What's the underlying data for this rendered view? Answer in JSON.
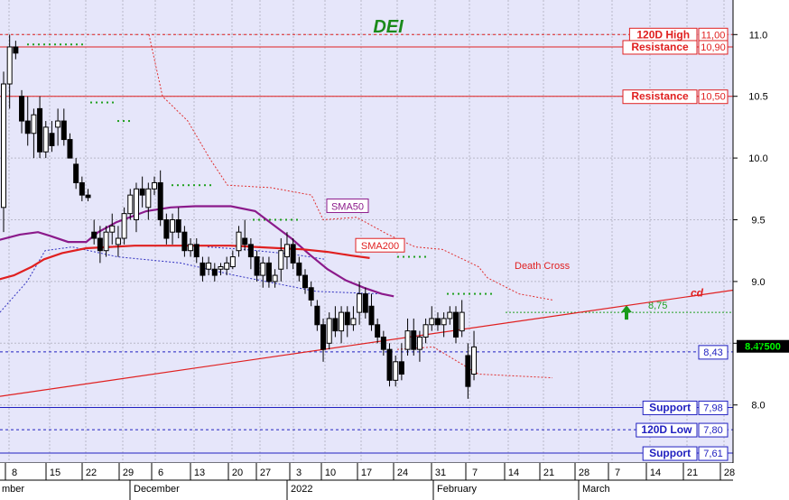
{
  "chart_data": {
    "type": "candlestick",
    "title": "DEI",
    "y_axis": {
      "ylim": [
        7.53,
        11.28
      ],
      "ticks": [
        "8.0",
        "8.5",
        "9.0",
        "9.5",
        "10.0",
        "10.5",
        "11.0"
      ],
      "position": "right"
    },
    "x_axis": {
      "day_ticks": [
        "8",
        "15",
        "22",
        "29",
        "6",
        "13",
        "20",
        "27",
        "3",
        "10",
        "17",
        "24",
        "31",
        "7",
        "14",
        "21",
        "28",
        "7",
        "14",
        "21",
        "28"
      ],
      "month_labels": [
        "mber",
        "December",
        "2022",
        "February",
        "March"
      ]
    },
    "levels": [
      {
        "name": "120D High",
        "label": "11,00",
        "value": 11.0,
        "style": "dashed",
        "color": "#e02020"
      },
      {
        "name": "Resistance",
        "label": "10,90",
        "value": 10.9,
        "style": "solid",
        "color": "#e02020"
      },
      {
        "name": "Resistance",
        "label": "10,50",
        "value": 10.5,
        "style": "solid",
        "color": "#e02020"
      },
      {
        "name": "",
        "label": "8,43",
        "value": 8.43,
        "style": "dashed",
        "color": "#2020c0"
      },
      {
        "name": "Support",
        "label": "7,98",
        "value": 7.98,
        "style": "solid",
        "color": "#2020c0"
      },
      {
        "name": "120D Low",
        "label": "7,80",
        "value": 7.8,
        "style": "dashed",
        "color": "#2020c0"
      },
      {
        "name": "Support",
        "label": "7,61",
        "value": 7.61,
        "style": "solid",
        "color": "#2020c0"
      }
    ],
    "green_level": {
      "label": "8,75",
      "value": 8.75
    },
    "last_price": "8.47500",
    "series": [
      {
        "name": "SMA50",
        "color": "#8b1a8b",
        "points": [
          [
            -1,
            9.33
          ],
          [
            3,
            9.38
          ],
          [
            6,
            9.4
          ],
          [
            8,
            9.37
          ],
          [
            11,
            9.32
          ],
          [
            14,
            9.32
          ],
          [
            16,
            9.4
          ],
          [
            19,
            9.48
          ],
          [
            24,
            9.57
          ],
          [
            28,
            9.6
          ],
          [
            32,
            9.61
          ],
          [
            38,
            9.61
          ],
          [
            42,
            9.57
          ],
          [
            45,
            9.46
          ],
          [
            48,
            9.35
          ],
          [
            51,
            9.22
          ],
          [
            54,
            9.1
          ],
          [
            57,
            9.01
          ],
          [
            60,
            8.95
          ],
          [
            63,
            8.9
          ],
          [
            65,
            8.88
          ]
        ]
      },
      {
        "name": "SMA200",
        "color": "#e02020",
        "points": [
          [
            -1,
            9.01
          ],
          [
            2,
            9.05
          ],
          [
            5,
            9.12
          ],
          [
            7,
            9.18
          ],
          [
            10,
            9.23
          ],
          [
            14,
            9.27
          ],
          [
            18,
            9.28
          ],
          [
            22,
            9.29
          ],
          [
            28,
            9.29
          ],
          [
            34,
            9.29
          ],
          [
            38,
            9.29
          ],
          [
            42,
            9.28
          ],
          [
            46,
            9.27
          ],
          [
            50,
            9.26
          ],
          [
            54,
            9.24
          ],
          [
            58,
            9.21
          ],
          [
            61,
            9.19
          ]
        ]
      }
    ],
    "candles": [
      [
        0,
        9.6,
        10.7,
        9.4,
        10.6
      ],
      [
        1,
        10.6,
        11.0,
        10.4,
        10.9
      ],
      [
        2,
        10.9,
        10.95,
        10.8,
        10.85
      ],
      [
        3,
        10.5,
        10.55,
        10.2,
        10.3
      ],
      [
        4,
        10.3,
        10.5,
        10.1,
        10.2
      ],
      [
        5,
        10.2,
        10.4,
        10.0,
        10.35
      ],
      [
        6,
        10.4,
        10.5,
        10.0,
        10.05
      ],
      [
        7,
        10.05,
        10.3,
        10.0,
        10.25
      ],
      [
        8,
        10.2,
        10.3,
        10.05,
        10.1
      ],
      [
        9,
        10.25,
        10.4,
        10.1,
        10.3
      ],
      [
        10,
        10.3,
        10.4,
        10.1,
        10.15
      ],
      [
        11,
        10.15,
        10.2,
        10.0,
        10.0
      ],
      [
        12,
        9.95,
        10.0,
        9.75,
        9.8
      ],
      [
        13,
        9.8,
        9.85,
        9.65,
        9.7
      ],
      [
        14,
        9.7,
        9.75,
        9.65,
        9.68
      ],
      [
        15,
        9.4,
        9.5,
        9.3,
        9.35
      ],
      [
        16,
        9.35,
        9.45,
        9.15,
        9.25
      ],
      [
        17,
        9.25,
        9.45,
        9.2,
        9.4
      ],
      [
        18,
        9.4,
        9.55,
        9.3,
        9.45
      ],
      [
        19,
        9.3,
        9.45,
        9.2,
        9.35
      ],
      [
        20,
        9.35,
        9.6,
        9.3,
        9.55
      ],
      [
        21,
        9.55,
        9.75,
        9.5,
        9.7
      ],
      [
        22,
        9.5,
        9.8,
        9.4,
        9.75
      ],
      [
        23,
        9.75,
        9.85,
        9.6,
        9.7
      ],
      [
        24,
        9.6,
        9.8,
        9.5,
        9.75
      ],
      [
        25,
        9.75,
        9.85,
        9.7,
        9.8
      ],
      [
        26,
        9.8,
        9.9,
        9.45,
        9.5
      ],
      [
        27,
        9.5,
        9.55,
        9.3,
        9.35
      ],
      [
        28,
        9.4,
        9.55,
        9.3,
        9.5
      ],
      [
        29,
        9.5,
        9.6,
        9.35,
        9.4
      ],
      [
        30,
        9.4,
        9.45,
        9.2,
        9.25
      ],
      [
        31,
        9.25,
        9.35,
        9.2,
        9.3
      ],
      [
        32,
        9.3,
        9.35,
        9.15,
        9.2
      ],
      [
        33,
        9.15,
        9.2,
        9.0,
        9.05
      ],
      [
        34,
        9.1,
        9.2,
        9.05,
        9.15
      ],
      [
        35,
        9.1,
        9.15,
        9.0,
        9.05
      ],
      [
        36,
        9.1,
        9.15,
        9.05,
        9.12
      ],
      [
        37,
        9.1,
        9.2,
        9.05,
        9.15
      ],
      [
        38,
        9.12,
        9.25,
        9.1,
        9.2
      ],
      [
        39,
        9.25,
        9.45,
        9.2,
        9.4
      ],
      [
        40,
        9.35,
        9.5,
        9.25,
        9.3
      ],
      [
        41,
        9.3,
        9.35,
        9.1,
        9.2
      ],
      [
        42,
        9.2,
        9.25,
        9.0,
        9.05
      ],
      [
        43,
        9.05,
        9.2,
        8.95,
        9.15
      ],
      [
        44,
        9.15,
        9.2,
        8.95,
        9.0
      ],
      [
        45,
        9.0,
        9.1,
        8.95,
        9.05
      ],
      [
        46,
        9.1,
        9.35,
        9.0,
        9.25
      ],
      [
        47,
        9.2,
        9.4,
        9.1,
        9.3
      ],
      [
        48,
        9.3,
        9.35,
        9.1,
        9.15
      ],
      [
        49,
        9.15,
        9.2,
        9.0,
        9.05
      ],
      [
        50,
        9.05,
        9.1,
        8.9,
        8.95
      ],
      [
        51,
        8.95,
        9.0,
        8.8,
        8.85
      ],
      [
        52,
        8.8,
        8.85,
        8.6,
        8.65
      ],
      [
        53,
        8.65,
        8.7,
        8.35,
        8.45
      ],
      [
        54,
        8.5,
        8.75,
        8.45,
        8.7
      ],
      [
        55,
        8.7,
        8.8,
        8.55,
        8.6
      ],
      [
        56,
        8.6,
        8.8,
        8.5,
        8.75
      ],
      [
        57,
        8.75,
        8.8,
        8.55,
        8.65
      ],
      [
        58,
        8.65,
        8.8,
        8.6,
        8.7
      ],
      [
        59,
        8.75,
        9.0,
        8.65,
        8.9
      ],
      [
        60,
        8.9,
        8.95,
        8.7,
        8.75
      ],
      [
        61,
        8.8,
        8.9,
        8.6,
        8.65
      ],
      [
        62,
        8.65,
        8.7,
        8.5,
        8.55
      ],
      [
        63,
        8.55,
        8.6,
        8.4,
        8.45
      ],
      [
        64,
        8.45,
        8.5,
        8.15,
        8.2
      ],
      [
        65,
        8.2,
        8.4,
        8.15,
        8.35
      ],
      [
        66,
        8.35,
        8.5,
        8.2,
        8.25
      ],
      [
        67,
        8.45,
        8.7,
        8.4,
        8.6
      ],
      [
        68,
        8.6,
        8.7,
        8.4,
        8.45
      ],
      [
        69,
        8.45,
        8.6,
        8.35,
        8.55
      ],
      [
        70,
        8.55,
        8.7,
        8.5,
        8.65
      ],
      [
        71,
        8.65,
        8.8,
        8.6,
        8.7
      ],
      [
        72,
        8.7,
        8.75,
        8.6,
        8.65
      ],
      [
        73,
        8.65,
        8.75,
        8.55,
        8.7
      ],
      [
        74,
        8.7,
        8.8,
        8.65,
        8.75
      ],
      [
        75,
        8.75,
        8.8,
        8.5,
        8.55
      ],
      [
        76,
        8.6,
        8.85,
        8.55,
        8.75
      ],
      [
        77,
        8.4,
        8.5,
        8.05,
        8.15
      ],
      [
        78,
        8.25,
        8.6,
        8.2,
        8.47
      ]
    ],
    "annotations": [
      {
        "text": "SMA50",
        "x": 48,
        "y": 9.61
      },
      {
        "text": "SMA200",
        "x": 52,
        "y": 9.29
      },
      {
        "text": "Death Cross",
        "x": 76,
        "y": 9.1
      },
      {
        "text": "cd",
        "x": 105,
        "y": 8.88
      }
    ],
    "grid": true
  }
}
